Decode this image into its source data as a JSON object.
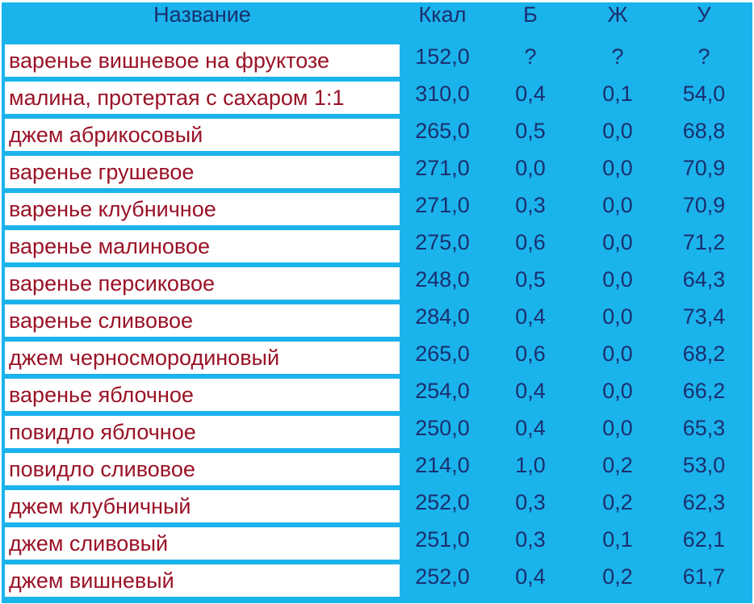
{
  "headers": [
    "Название",
    "Ккал",
    "Б",
    "Ж",
    "У"
  ],
  "rows": [
    [
      "варенье вишневое на фруктозе",
      "152,0",
      "?",
      "?",
      "?"
    ],
    [
      "малина, протертая с сахаром 1:1",
      "310,0",
      "0,4",
      "0,1",
      "54,0"
    ],
    [
      "джем абрикосовый",
      "265,0",
      "0,5",
      "0,0",
      "68,8"
    ],
    [
      "варенье грушевое",
      "271,0",
      "0,0",
      "0,0",
      "70,9"
    ],
    [
      "варенье клубничное",
      "271,0",
      "0,3",
      "0,0",
      "70,9"
    ],
    [
      "варенье малиновое",
      "275,0",
      "0,6",
      "0,0",
      "71,2"
    ],
    [
      "варенье персиковое",
      "248,0",
      "0,5",
      "0,0",
      "64,3"
    ],
    [
      "варенье сливовое",
      "284,0",
      "0,4",
      "0,0",
      "73,4"
    ],
    [
      "джем черносмородиновый",
      "265,0",
      "0,6",
      "0,0",
      "68,2"
    ],
    [
      "варенье яблочное",
      "254,0",
      "0,4",
      "0,0",
      "66,2"
    ],
    [
      "повидло яблочное",
      "250,0",
      "0,4",
      "0,0",
      "65,3"
    ],
    [
      "повидло сливовое",
      "214,0",
      "1,0",
      "0,2",
      "53,0"
    ],
    [
      "джем клубничный",
      "252,0",
      "0,3",
      "0,2",
      "62,3"
    ],
    [
      "джем сливовый",
      "251,0",
      "0,3",
      "0,1",
      "62,1"
    ],
    [
      "джем вишневый",
      "252,0",
      "0,4",
      "0,2",
      "61,7"
    ]
  ],
  "colors": {
    "background": "#1bb3ec",
    "name_text": "#9a1226",
    "number_text": "#1a2f6e"
  }
}
